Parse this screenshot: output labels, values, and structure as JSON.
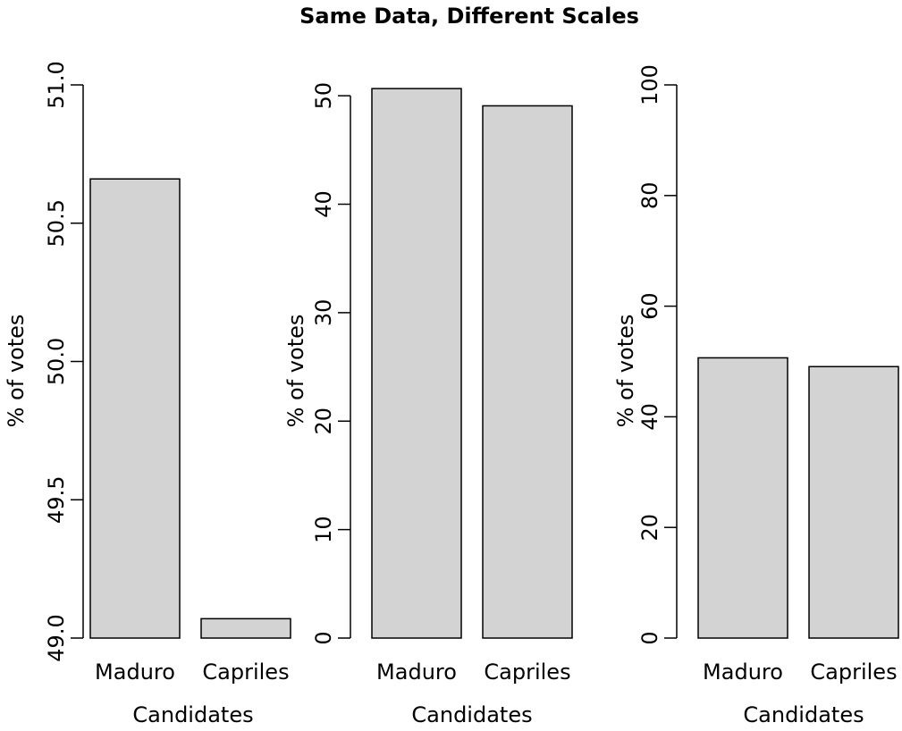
{
  "title": "Same Data, Different Scales",
  "colors": {
    "bar_fill": "#d3d3d3",
    "bar_stroke": "#000000",
    "axis": "#000000",
    "background": "#ffffff"
  },
  "chart_data": [
    {
      "type": "bar",
      "categories": [
        "Maduro",
        "Capriles"
      ],
      "values": [
        50.66,
        49.07
      ],
      "xlabel": "Candidates",
      "ylabel": "% of votes",
      "ylim": [
        49.0,
        51.0
      ],
      "yticks": [
        49.0,
        49.5,
        50.0,
        50.5,
        51.0
      ],
      "ytick_labels": [
        "49.0",
        "49.5",
        "50.0",
        "50.5",
        "51.0"
      ],
      "grid": false,
      "legend": "none"
    },
    {
      "type": "bar",
      "categories": [
        "Maduro",
        "Capriles"
      ],
      "values": [
        50.66,
        49.07
      ],
      "xlabel": "Candidates",
      "ylabel": "% of votes",
      "ylim": [
        0,
        51
      ],
      "yticks": [
        0,
        10,
        20,
        30,
        40,
        50
      ],
      "ytick_labels": [
        "0",
        "10",
        "20",
        "30",
        "40",
        "50"
      ],
      "grid": false,
      "legend": "none"
    },
    {
      "type": "bar",
      "categories": [
        "Maduro",
        "Capriles"
      ],
      "values": [
        50.66,
        49.07
      ],
      "xlabel": "Candidates",
      "ylabel": "% of votes",
      "ylim": [
        0,
        100
      ],
      "yticks": [
        0,
        20,
        40,
        60,
        80,
        100
      ],
      "ytick_labels": [
        "0",
        "20",
        "40",
        "60",
        "80",
        "100"
      ],
      "grid": false,
      "legend": "none"
    }
  ]
}
